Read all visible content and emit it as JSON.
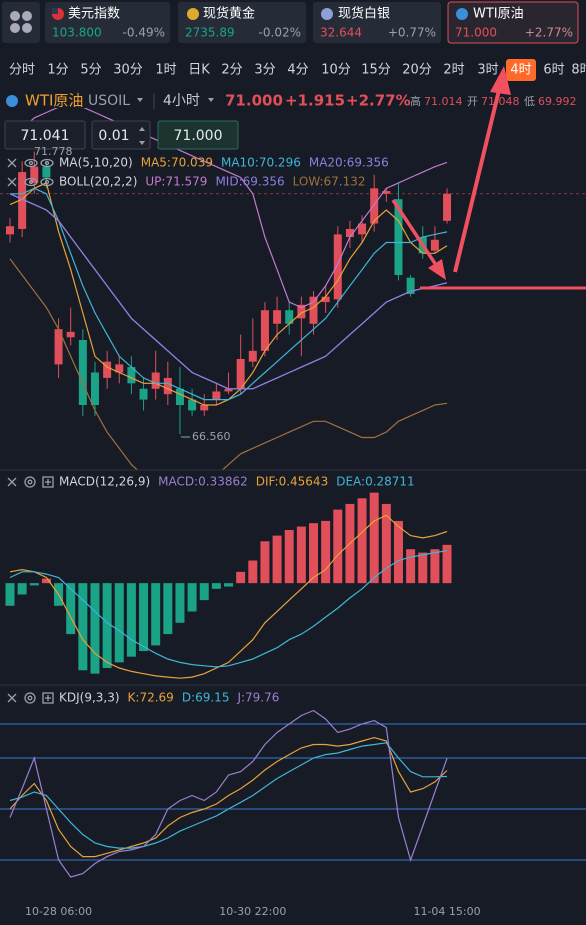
{
  "tickers": [
    {
      "name": "美元指数",
      "price": "103.800",
      "change": "-0.49%"
    },
    {
      "name": "现货黄金",
      "price": "2735.89",
      "change": "-0.02%"
    },
    {
      "name": "现货白银",
      "price": "32.644",
      "change": "+0.77%"
    },
    {
      "name": "WTI原油",
      "price": "71.000",
      "change": "+2.77%"
    }
  ],
  "timeframes": {
    "items": [
      "分时",
      "1分",
      "5分",
      "30分",
      "1时",
      "日K",
      "2分",
      "3分",
      "4分",
      "10分",
      "15分",
      "20分",
      "2时",
      "3时",
      "4时",
      "6时",
      "8时"
    ],
    "active": 14
  },
  "header": {
    "symbol": "WTI原油",
    "code": "USOIL",
    "period": "4小时",
    "price": "71.000",
    "change": "+1.915",
    "percent": "+2.77%",
    "high_label": "高",
    "high": "71.014",
    "open_label": "开",
    "open": "71.048",
    "low_label": "低",
    "low": "69.992"
  },
  "order": {
    "price": "71.041",
    "quantity": "0.01",
    "target": "71.000"
  },
  "chart_data": [
    {
      "type": "candlestick",
      "max_label": "71.778",
      "min_label": "66.560",
      "categories": [
        null,
        null,
        null,
        null,
        "10-28 06:00",
        null,
        null,
        null,
        null,
        null,
        null,
        null,
        null,
        null,
        null,
        null,
        null,
        null,
        null,
        null,
        "10-30 22:00",
        null,
        null,
        null,
        null,
        null,
        null,
        null,
        null,
        null,
        null,
        null,
        null,
        null,
        null,
        null,
        "11-04 15:00"
      ],
      "open": [
        70.25,
        70.35,
        71.2,
        71.5,
        67.85,
        68.35,
        68.3,
        67.7,
        67.6,
        67.7,
        67.8,
        67.4,
        67.4,
        67.3,
        67.4,
        67.2,
        67.0,
        67.2,
        67.35,
        67.4,
        67.9,
        68.1,
        68.6,
        68.85,
        68.7,
        68.6,
        69.0,
        69.05,
        70.2,
        70.25,
        70.45,
        71.0,
        70.9,
        69.45,
        70.2,
        69.95,
        70.5
      ],
      "high": [
        70.55,
        71.6,
        71.778,
        71.6,
        68.7,
        68.9,
        68.5,
        67.9,
        68.1,
        68.0,
        68.0,
        67.6,
        68.1,
        67.9,
        67.8,
        67.4,
        67.3,
        67.5,
        67.7,
        68.4,
        68.7,
        69.0,
        69.1,
        69.0,
        69.1,
        69.2,
        69.3,
        70.4,
        70.5,
        70.6,
        71.35,
        71.1,
        71.2,
        69.5,
        70.4,
        70.4,
        71.1
      ],
      "low": [
        70.1,
        70.2,
        71.0,
        71.1,
        67.6,
        68.2,
        66.9,
        66.9,
        67.4,
        67.5,
        67.3,
        67.0,
        67.2,
        67.1,
        66.56,
        66.9,
        66.9,
        67.1,
        67.3,
        67.3,
        67.8,
        68.0,
        68.3,
        68.4,
        68.0,
        68.4,
        68.8,
        68.9,
        70.0,
        70.1,
        70.3,
        70.85,
        69.4,
        69.1,
        69.8,
        69.9,
        70.45
      ],
      "close": [
        70.4,
        71.4,
        71.5,
        71.3,
        68.5,
        68.45,
        67.1,
        67.1,
        67.9,
        67.85,
        67.5,
        67.2,
        67.7,
        67.6,
        67.1,
        67.0,
        67.1,
        67.35,
        67.4,
        67.95,
        68.1,
        68.85,
        68.85,
        68.6,
        68.95,
        69.1,
        69.1,
        70.25,
        70.35,
        70.45,
        71.1,
        71.05,
        69.5,
        69.15,
        69.9,
        70.15,
        71.0
      ],
      "up_color": "#e04f5a",
      "down_color": "#1ba387",
      "price_line": 71.0,
      "ylim": [
        65.9,
        71.9
      ],
      "indicators": [
        {
          "title": "MA(5,10,20)",
          "series": [
            {
              "name": "MA5:70.039",
              "color": "#e8a23a",
              "values": [
                70.8,
                70.9,
                71.1,
                71.2,
                70.3,
                69.6,
                68.8,
                68.0,
                67.8,
                67.7,
                67.6,
                67.5,
                67.5,
                67.4,
                67.3,
                67.2,
                67.1,
                67.1,
                67.2,
                67.4,
                67.7,
                68.1,
                68.4,
                68.6,
                68.8,
                68.9,
                69.1,
                69.4,
                69.8,
                70.1,
                70.5,
                70.7,
                70.5,
                70.1,
                69.9,
                69.9,
                70.039
              ]
            },
            {
              "name": "MA10:70.296",
              "color": "#3fb6d6",
              "values": [
                71.0,
                71.0,
                71.1,
                71.0,
                70.5,
                69.9,
                69.3,
                68.8,
                68.4,
                68.0,
                67.8,
                67.6,
                67.5,
                67.5,
                67.4,
                67.3,
                67.2,
                67.2,
                67.2,
                67.3,
                67.5,
                67.7,
                67.9,
                68.1,
                68.3,
                68.5,
                68.7,
                69.0,
                69.3,
                69.6,
                69.9,
                70.1,
                70.1,
                70.1,
                70.2,
                70.25,
                70.296
              ]
            },
            {
              "name": "MA20:69.356",
              "color": "#8f7ee0",
              "values": [
                71.0,
                70.9,
                70.8,
                70.7,
                70.5,
                70.2,
                69.9,
                69.6,
                69.3,
                69.0,
                68.7,
                68.5,
                68.3,
                68.1,
                67.9,
                67.7,
                67.6,
                67.5,
                67.4,
                67.4,
                67.4,
                67.5,
                67.6,
                67.7,
                67.8,
                67.9,
                68.0,
                68.2,
                68.4,
                68.6,
                68.8,
                69.0,
                69.1,
                69.2,
                69.25,
                69.3,
                69.356
              ]
            }
          ]
        },
        {
          "title": "BOLL(20,2,2)",
          "series": [
            {
              "name": "UP:71.579",
              "color": "#c27bd0",
              "values": [
                72.0,
                72.2,
                72.4,
                72.5,
                72.6,
                72.6,
                72.6,
                72.5,
                72.4,
                72.3,
                72.2,
                72.1,
                72.0,
                71.9,
                71.8,
                71.7,
                71.6,
                71.5,
                71.4,
                71.3,
                71.0,
                70.2,
                69.6,
                69.0,
                68.9,
                69.0,
                69.3,
                69.7,
                70.2,
                70.5,
                70.8,
                71.1,
                71.2,
                71.3,
                71.4,
                71.5,
                71.579
              ]
            },
            {
              "name": "MID:69.356",
              "color": "#8f7ee0",
              "values": [
                71.0,
                70.9,
                70.8,
                70.7,
                70.5,
                70.2,
                69.9,
                69.6,
                69.3,
                69.0,
                68.7,
                68.5,
                68.3,
                68.1,
                67.9,
                67.7,
                67.6,
                67.5,
                67.4,
                67.4,
                67.4,
                67.5,
                67.6,
                67.7,
                67.8,
                67.9,
                68.0,
                68.2,
                68.4,
                68.6,
                68.8,
                69.0,
                69.1,
                69.2,
                69.25,
                69.3,
                69.356
              ]
            },
            {
              "name": "LOW:67.132",
              "color": "#a2703f",
              "values": [
                69.8,
                69.5,
                69.2,
                68.9,
                68.5,
                68.0,
                67.5,
                67.0,
                66.6,
                66.3,
                66.0,
                65.8,
                65.6,
                65.5,
                65.5,
                65.6,
                65.7,
                65.8,
                66.0,
                66.2,
                66.3,
                66.4,
                66.5,
                66.6,
                66.7,
                66.8,
                66.8,
                66.7,
                66.6,
                66.5,
                66.5,
                66.6,
                66.8,
                66.9,
                67.0,
                67.1,
                67.132
              ]
            }
          ]
        }
      ]
    },
    {
      "type": "bar",
      "title": "MACD(12,26,9)",
      "ylim": [
        -0.9,
        1.0
      ],
      "histogram": {
        "name": "MACD:0.33862",
        "color": "#9b7fd1",
        "up_color": "#e04f5a",
        "down_color": "#1ba387",
        "values": [
          -0.2,
          -0.1,
          -0.02,
          0.04,
          -0.2,
          -0.45,
          -0.77,
          -0.8,
          -0.75,
          -0.7,
          -0.65,
          -0.6,
          -0.55,
          -0.45,
          -0.35,
          -0.25,
          -0.15,
          -0.05,
          -0.03,
          0.1,
          0.2,
          0.37,
          0.42,
          0.47,
          0.5,
          0.53,
          0.55,
          0.65,
          0.7,
          0.75,
          0.8,
          0.7,
          0.55,
          0.3,
          0.27,
          0.3,
          0.33862
        ]
      },
      "series": [
        {
          "name": "DIF:0.45643",
          "color": "#e8a23a",
          "values": [
            0.1,
            0.12,
            0.1,
            0.05,
            -0.1,
            -0.3,
            -0.5,
            -0.62,
            -0.7,
            -0.75,
            -0.78,
            -0.8,
            -0.82,
            -0.83,
            -0.84,
            -0.83,
            -0.8,
            -0.75,
            -0.7,
            -0.6,
            -0.5,
            -0.35,
            -0.25,
            -0.15,
            -0.05,
            0.05,
            0.12,
            0.25,
            0.35,
            0.45,
            0.55,
            0.6,
            0.5,
            0.42,
            0.4,
            0.42,
            0.45643
          ]
        },
        {
          "name": "DEA:0.28711",
          "color": "#3fb6d6",
          "values": [
            0.05,
            0.1,
            0.1,
            0.08,
            0.05,
            -0.05,
            -0.15,
            -0.25,
            -0.35,
            -0.42,
            -0.5,
            -0.56,
            -0.62,
            -0.67,
            -0.7,
            -0.72,
            -0.73,
            -0.74,
            -0.73,
            -0.7,
            -0.67,
            -0.62,
            -0.57,
            -0.5,
            -0.45,
            -0.38,
            -0.3,
            -0.22,
            -0.13,
            -0.05,
            0.05,
            0.13,
            0.2,
            0.23,
            0.25,
            0.27,
            0.28711
          ]
        }
      ]
    },
    {
      "type": "line",
      "title": "KDJ(9,3,3)",
      "ylim": [
        -3.5,
        116.5
      ],
      "hlines": [
        100,
        80,
        50,
        20
      ],
      "hline_color": "#3a7bd5",
      "series": [
        {
          "name": "K:72.69",
          "color": "#e8a23a",
          "values": [
            50,
            58,
            65,
            55,
            38,
            28,
            22,
            22,
            24,
            26,
            28,
            30,
            33,
            40,
            45,
            48,
            50,
            53,
            58,
            62,
            67,
            73,
            78,
            82,
            86,
            88,
            88,
            87,
            88,
            90,
            92,
            90,
            72,
            60,
            62,
            66,
            72.69
          ]
        },
        {
          "name": "D:69.15",
          "color": "#3fb6d6",
          "values": [
            55,
            57,
            60,
            58,
            50,
            42,
            35,
            30,
            28,
            27,
            27,
            28,
            30,
            33,
            37,
            40,
            43,
            46,
            50,
            54,
            58,
            63,
            68,
            72,
            76,
            80,
            82,
            83,
            85,
            87,
            88,
            89,
            80,
            72,
            69,
            69,
            69.15
          ]
        },
        {
          "name": "J:79.76",
          "color": "#9b7fd1",
          "values": [
            45,
            62,
            80,
            50,
            20,
            10,
            12,
            18,
            22,
            25,
            26,
            28,
            35,
            50,
            55,
            58,
            55,
            60,
            70,
            72,
            78,
            88,
            95,
            100,
            105,
            108,
            103,
            95,
            97,
            100,
            102,
            98,
            45,
            20,
            40,
            60,
            79.76
          ]
        }
      ]
    }
  ]
}
